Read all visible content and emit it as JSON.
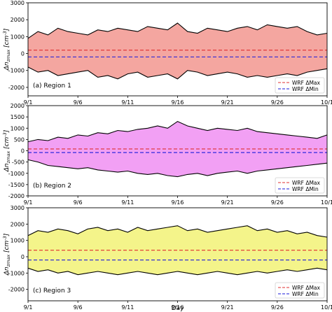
{
  "chart_data": [
    {
      "type": "area",
      "label": "(a) Region 1",
      "xlabel": "",
      "ylabel": "Δn",
      "ylabel_sub": "zmax",
      "ylabel_unit": "[cm",
      "ylabel_exp": "-3",
      "ylim": [
        -2500,
        3000
      ],
      "yticks": [
        -2000,
        -1000,
        0,
        1000,
        2000,
        3000
      ],
      "xlim": [
        0,
        30
      ],
      "xticks": [
        {
          "x": 0,
          "label": "9/1"
        },
        {
          "x": 5,
          "label": "9/6"
        },
        {
          "x": 10,
          "label": "9/11"
        },
        {
          "x": 15,
          "label": "9/16"
        },
        {
          "x": 20,
          "label": "9/21"
        },
        {
          "x": 25,
          "label": "9/26"
        },
        {
          "x": 30,
          "label": "10/1"
        }
      ],
      "fill_color": "#f4a6a0",
      "series": [
        {
          "name": "WRF ΔMax",
          "kind": "reference",
          "value": 200,
          "color": "#e03030",
          "dash": true
        },
        {
          "name": "WRF ΔMin",
          "kind": "reference",
          "value": -200,
          "color": "#1a1adb",
          "dash": true
        },
        {
          "name": "",
          "kind": "upper",
          "color": "#000000",
          "x": [
            0,
            1,
            2,
            3,
            4,
            5,
            6,
            7,
            8,
            9,
            10,
            11,
            12,
            13,
            14,
            15,
            16,
            17,
            18,
            19,
            20,
            21,
            22,
            23,
            24,
            25,
            26,
            27,
            28,
            29,
            30
          ],
          "values": [
            900,
            1300,
            1100,
            1500,
            1300,
            1200,
            1100,
            1400,
            1300,
            1500,
            1400,
            1300,
            1600,
            1500,
            1400,
            1800,
            1300,
            1200,
            1500,
            1400,
            1300,
            1500,
            1600,
            1400,
            1700,
            1600,
            1500,
            1600,
            1300,
            1100,
            1200
          ]
        },
        {
          "name": "",
          "kind": "lower",
          "color": "#000000",
          "x": [
            0,
            1,
            2,
            3,
            4,
            5,
            6,
            7,
            8,
            9,
            10,
            11,
            12,
            13,
            14,
            15,
            16,
            17,
            18,
            19,
            20,
            21,
            22,
            23,
            24,
            25,
            26,
            27,
            28,
            29,
            30
          ],
          "values": [
            -800,
            -1100,
            -1000,
            -1300,
            -1200,
            -1100,
            -1000,
            -1400,
            -1300,
            -1500,
            -1200,
            -1100,
            -1400,
            -1300,
            -1200,
            -1500,
            -1000,
            -1100,
            -1300,
            -1200,
            -1100,
            -1200,
            -1400,
            -1300,
            -1400,
            -1300,
            -1200,
            -1300,
            -1100,
            -1000,
            -900
          ]
        }
      ]
    },
    {
      "type": "area",
      "label": "(b) Region 2",
      "xlabel": "",
      "ylabel": "Δn",
      "ylabel_sub": "zmax",
      "ylabel_unit": "[cm",
      "ylabel_exp": "-3",
      "ylim": [
        -2000,
        2000
      ],
      "yticks": [
        -2000,
        -1500,
        -1000,
        -500,
        0,
        500,
        1000,
        1500,
        2000
      ],
      "xlim": [
        0,
        30
      ],
      "xticks": [
        {
          "x": 0,
          "label": "9/1"
        },
        {
          "x": 5,
          "label": "9/6"
        },
        {
          "x": 10,
          "label": "9/11"
        },
        {
          "x": 15,
          "label": "9/16"
        },
        {
          "x": 20,
          "label": "9/21"
        },
        {
          "x": 25,
          "label": "9/26"
        },
        {
          "x": 30,
          "label": "10/1"
        }
      ],
      "fill_color": "#f2a0f4",
      "series": [
        {
          "name": "WRF ΔMax",
          "kind": "reference",
          "value": 80,
          "color": "#e03030",
          "dash": true
        },
        {
          "name": "WRF ΔMin",
          "kind": "reference",
          "value": -80,
          "color": "#1a1adb",
          "dash": true
        },
        {
          "name": "",
          "kind": "upper",
          "color": "#000000",
          "x": [
            0,
            1,
            2,
            3,
            4,
            5,
            6,
            7,
            8,
            9,
            10,
            11,
            12,
            13,
            14,
            15,
            16,
            17,
            18,
            19,
            20,
            21,
            22,
            23,
            24,
            25,
            26,
            27,
            28,
            29,
            30
          ],
          "values": [
            400,
            500,
            450,
            600,
            550,
            700,
            650,
            800,
            750,
            900,
            850,
            950,
            1000,
            1100,
            1000,
            1300,
            1100,
            1000,
            900,
            1000,
            950,
            900,
            1000,
            850,
            800,
            750,
            700,
            650,
            600,
            550,
            700
          ]
        },
        {
          "name": "",
          "kind": "lower",
          "color": "#000000",
          "x": [
            0,
            1,
            2,
            3,
            4,
            5,
            6,
            7,
            8,
            9,
            10,
            11,
            12,
            13,
            14,
            15,
            16,
            17,
            18,
            19,
            20,
            21,
            22,
            23,
            24,
            25,
            26,
            27,
            28,
            29,
            30
          ],
          "values": [
            -400,
            -500,
            -650,
            -700,
            -750,
            -800,
            -750,
            -850,
            -900,
            -950,
            -900,
            -1000,
            -1050,
            -1000,
            -1100,
            -1150,
            -1050,
            -1000,
            -1100,
            -1000,
            -950,
            -900,
            -1000,
            -900,
            -850,
            -800,
            -750,
            -700,
            -650,
            -600,
            -550
          ]
        }
      ]
    },
    {
      "type": "area",
      "label": "(c) Region 3",
      "xlabel": "Day",
      "ylabel": "Δn",
      "ylabel_sub": "zmax",
      "ylabel_unit": "[cm",
      "ylabel_exp": "-3",
      "ylim": [
        -2700,
        3000
      ],
      "yticks": [
        -2000,
        -1000,
        0,
        1000,
        2000,
        3000
      ],
      "xlim": [
        0,
        30
      ],
      "xticks": [
        {
          "x": 0,
          "label": "9/1"
        },
        {
          "x": 5,
          "label": "9/6"
        },
        {
          "x": 10,
          "label": "9/11"
        },
        {
          "x": 15,
          "label": "9/16"
        },
        {
          "x": 20,
          "label": "9/21"
        },
        {
          "x": 25,
          "label": "9/26"
        },
        {
          "x": 30,
          "label": "10/1"
        }
      ],
      "fill_color": "#f4f48a",
      "series": [
        {
          "name": "WRF ΔMax",
          "kind": "reference",
          "value": 400,
          "color": "#e03030",
          "dash": true
        },
        {
          "name": "WRF ΔMin",
          "kind": "reference",
          "value": -200,
          "color": "#1a1adb",
          "dash": true
        },
        {
          "name": "",
          "kind": "upper",
          "color": "#000000",
          "x": [
            0,
            1,
            2,
            3,
            4,
            5,
            6,
            7,
            8,
            9,
            10,
            11,
            12,
            13,
            14,
            15,
            16,
            17,
            18,
            19,
            20,
            21,
            22,
            23,
            24,
            25,
            26,
            27,
            28,
            29,
            30
          ],
          "values": [
            1300,
            1600,
            1500,
            1700,
            1600,
            1400,
            1700,
            1800,
            1600,
            1700,
            1500,
            1800,
            1600,
            1700,
            1800,
            1900,
            1600,
            1700,
            1500,
            1600,
            1700,
            1800,
            1900,
            1600,
            1700,
            1500,
            1600,
            1400,
            1500,
            1300,
            1200
          ]
        },
        {
          "name": "",
          "kind": "lower",
          "color": "#000000",
          "x": [
            0,
            1,
            2,
            3,
            4,
            5,
            6,
            7,
            8,
            9,
            10,
            11,
            12,
            13,
            14,
            15,
            16,
            17,
            18,
            19,
            20,
            21,
            22,
            23,
            24,
            25,
            26,
            27,
            28,
            29,
            30
          ],
          "values": [
            -700,
            -900,
            -800,
            -1000,
            -900,
            -1100,
            -1000,
            -900,
            -1000,
            -1100,
            -1000,
            -900,
            -1000,
            -1100,
            -1000,
            -900,
            -1000,
            -1100,
            -1000,
            -900,
            -1000,
            -1100,
            -1000,
            -900,
            -1000,
            -900,
            -800,
            -900,
            -800,
            -700,
            -800
          ]
        }
      ]
    }
  ]
}
